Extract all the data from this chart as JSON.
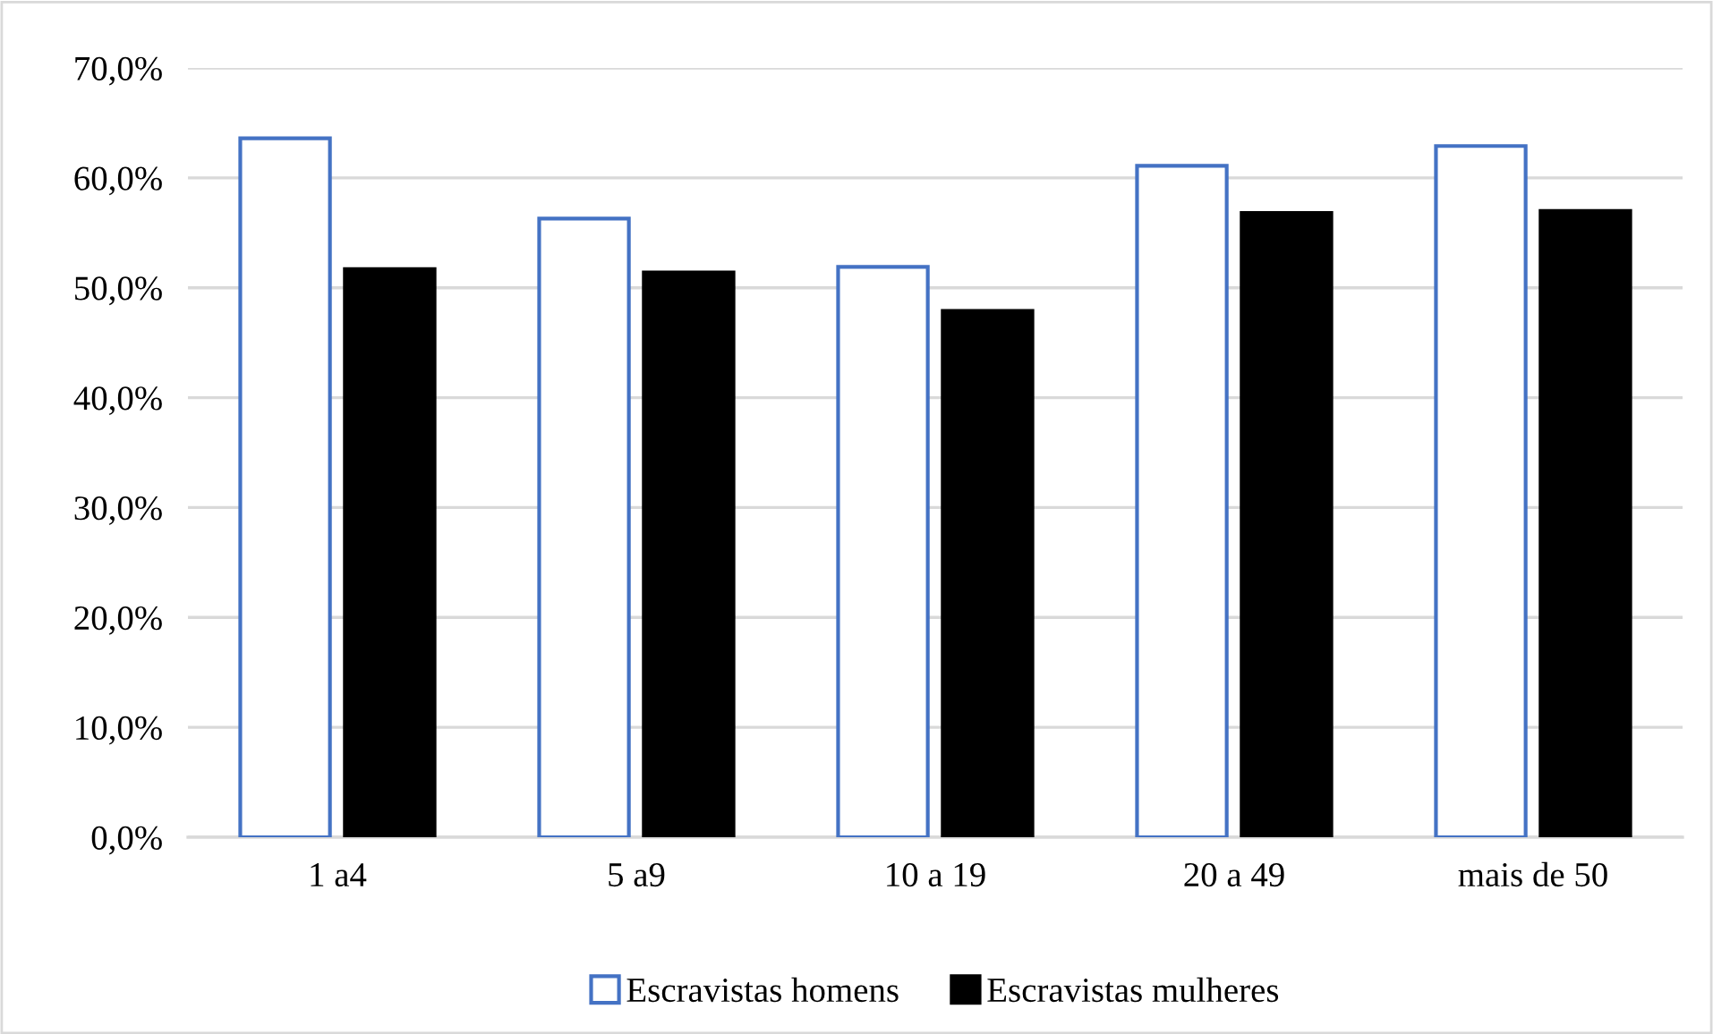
{
  "chart_data": {
    "type": "bar",
    "categories": [
      "1 a4",
      "5 a9",
      "10 a 19",
      "20 a 49",
      "mais de 50"
    ],
    "series": [
      {
        "name": "Escravistas homens",
        "color": "#4472c4",
        "values": [
          63.6,
          56.3,
          51.9,
          61.1,
          62.9
        ]
      },
      {
        "name": "Escravistas mulheres",
        "color": "#000000",
        "values": [
          51.7,
          51.4,
          47.9,
          56.8,
          57.0
        ]
      }
    ],
    "ylim": [
      0,
      70
    ],
    "yticks": [
      {
        "value": 0,
        "label": "0,0%"
      },
      {
        "value": 10,
        "label": "10,0%"
      },
      {
        "value": 20,
        "label": "20,0%"
      },
      {
        "value": 30,
        "label": "30,0%"
      },
      {
        "value": 40,
        "label": "40,0%"
      },
      {
        "value": 50,
        "label": "50,0%"
      },
      {
        "value": 60,
        "label": "60,0%"
      },
      {
        "value": 70,
        "label": "70,0%"
      }
    ],
    "grid": "y",
    "legend": "bottom"
  }
}
